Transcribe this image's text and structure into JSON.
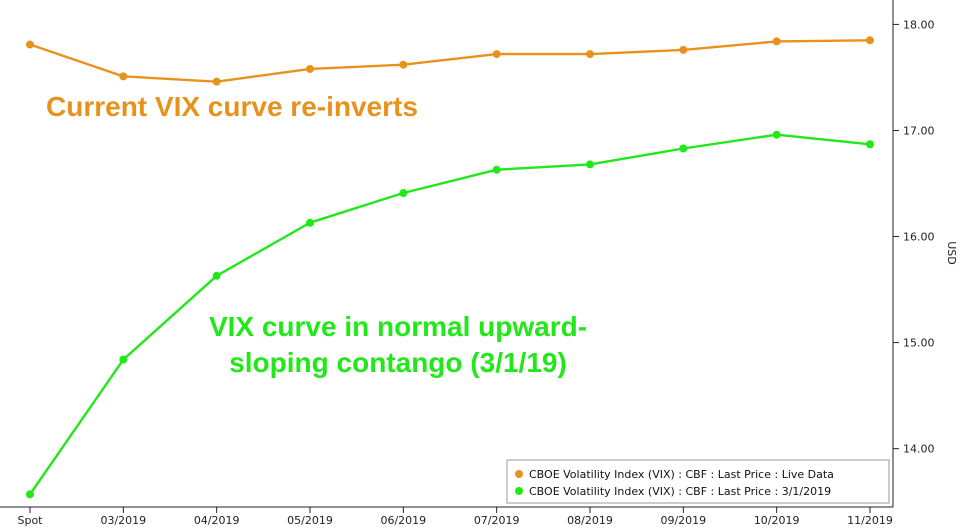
{
  "chart_data": {
    "type": "line",
    "categories": [
      "Spot",
      "03/2019",
      "04/2019",
      "05/2019",
      "06/2019",
      "07/2019",
      "08/2019",
      "09/2019",
      "10/2019",
      "11/2019"
    ],
    "series": [
      {
        "name": "CBOE Volatility Index (VIX) : CBF : Last Price : Live Data",
        "color": "#e8921e",
        "values": [
          17.81,
          17.51,
          17.46,
          17.58,
          17.62,
          17.72,
          17.72,
          17.76,
          17.84,
          17.85
        ]
      },
      {
        "name": "CBOE Volatility Index (VIX) : CBF : Last Price : 3/1/2019",
        "color": "#22e81a",
        "values": [
          13.57,
          14.84,
          15.63,
          16.13,
          16.41,
          16.63,
          16.68,
          16.83,
          16.96,
          16.87
        ]
      }
    ],
    "ylabel": "USD",
    "ylim": [
      13.45,
      18.23
    ],
    "y_ticks": [
      "14.00",
      "15.00",
      "16.00",
      "17.00",
      "18.00"
    ],
    "y_axis_position": "right",
    "grid": false,
    "legend_position": "bottom-right",
    "annotations": [
      {
        "line1": "Current VIX curve re-inverts",
        "line2": "",
        "color": "#e8921e"
      },
      {
        "line1": "VIX curve in normal upward-",
        "line2": "sloping contango (3/1/19)",
        "color": "#22e81a"
      }
    ]
  }
}
